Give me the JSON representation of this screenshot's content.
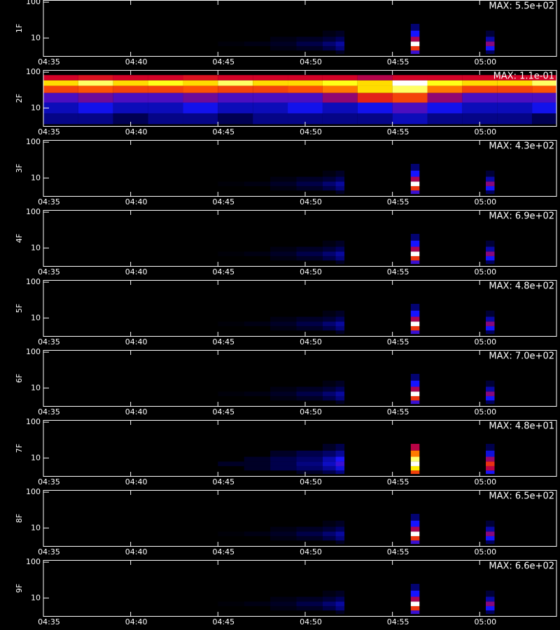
{
  "chart_data": [
    {
      "type": "heatmap",
      "ylabel": "1F",
      "max": {
        "value": 550,
        "label": "MAX: 5.5e+02"
      },
      "log_y": true,
      "xlim": [
        275,
        304.4
      ],
      "ylim": [
        3,
        115
      ],
      "yticks": [
        10,
        100
      ],
      "xticks": [
        {
          "value": 275,
          "label": "04:35"
        },
        {
          "value": 280,
          "label": "04:40"
        },
        {
          "value": 285,
          "label": "04:45"
        },
        {
          "value": 290,
          "label": "04:50"
        },
        {
          "value": 295,
          "label": "04:55"
        },
        {
          "value": 300,
          "label": "05:00"
        }
      ],
      "x": [
        285,
        286.5,
        288,
        289.5,
        291,
        292,
        296.3,
        300.6
      ],
      "rows": [
        {
          "y": 4,
          "values": [
            0,
            0,
            0,
            0,
            0,
            11,
            138,
            28
          ]
        },
        {
          "y": 5,
          "values": [
            0,
            0,
            6,
            11,
            22,
            44,
            330,
            110
          ]
        },
        {
          "y": 7,
          "values": [
            3,
            6,
            11,
            22,
            39,
            61,
            550,
            193
          ]
        },
        {
          "y": 9,
          "values": [
            0,
            0,
            6,
            11,
            17,
            28,
            220,
            66
          ]
        },
        {
          "y": 13,
          "values": [
            0,
            0,
            0,
            0,
            6,
            11,
            110,
            17
          ]
        },
        {
          "y": 20,
          "values": [
            0,
            0,
            0,
            0,
            0,
            0,
            39,
            0
          ]
        }
      ]
    },
    {
      "type": "heatmap",
      "ylabel": "2F",
      "max": {
        "value": 0.11,
        "label": "MAX: 1.1e-01"
      },
      "log_y": true,
      "xlim": [
        275,
        304.4
      ],
      "ylim": [
        3,
        115
      ],
      "yticks": [
        10,
        100
      ],
      "xticks": [
        {
          "value": 275,
          "label": "04:35"
        },
        {
          "value": 280,
          "label": "04:40"
        },
        {
          "value": 285,
          "label": "04:45"
        },
        {
          "value": 290,
          "label": "04:50"
        },
        {
          "value": 295,
          "label": "04:55"
        },
        {
          "value": 300,
          "label": "05:00"
        }
      ],
      "x": [
        275,
        277,
        279,
        281,
        283,
        285,
        287,
        289,
        291,
        293,
        295,
        297,
        299,
        301,
        303
      ],
      "rows": [
        {
          "y": 5,
          "values": [
            0.01,
            0.01,
            0.005,
            0.01,
            0.01,
            0.005,
            0.01,
            0.01,
            0.01,
            0.01,
            0.015,
            0.01,
            0.01,
            0.01,
            0.005
          ]
        },
        {
          "y": 10,
          "values": [
            0.015,
            0.02,
            0.015,
            0.015,
            0.02,
            0.015,
            0.015,
            0.02,
            0.015,
            0.02,
            0.03,
            0.02,
            0.015,
            0.015,
            0.02
          ]
        },
        {
          "y": 20,
          "values": [
            0.03,
            0.035,
            0.03,
            0.03,
            0.035,
            0.03,
            0.03,
            0.03,
            0.04,
            0.06,
            0.07,
            0.04,
            0.03,
            0.03,
            0.03
          ]
        },
        {
          "y": 35,
          "values": [
            0.07,
            0.075,
            0.07,
            0.07,
            0.075,
            0.07,
            0.07,
            0.075,
            0.08,
            0.09,
            0.1,
            0.08,
            0.07,
            0.07,
            0.075
          ]
        },
        {
          "y": 50,
          "values": [
            0.09,
            0.1,
            0.09,
            0.095,
            0.09,
            0.1,
            0.09,
            0.09,
            0.095,
            0.09,
            0.11,
            0.095,
            0.09,
            0.09,
            0.1
          ]
        },
        {
          "y": 70,
          "values": [
            0.05,
            0.055,
            0.05,
            0.05,
            0.055,
            0.05,
            0.05,
            0.05,
            0.05,
            0.045,
            0.05,
            0.05,
            0.05,
            0.05,
            0.05
          ]
        }
      ]
    },
    {
      "type": "heatmap",
      "ylabel": "3F",
      "max": {
        "value": 430,
        "label": "MAX: 4.3e+02"
      },
      "log_y": true,
      "xlim": [
        275,
        304.4
      ],
      "ylim": [
        3,
        115
      ],
      "yticks": [
        10,
        100
      ],
      "xticks": [
        {
          "value": 275,
          "label": "04:35"
        },
        {
          "value": 280,
          "label": "04:40"
        },
        {
          "value": 285,
          "label": "04:45"
        },
        {
          "value": 290,
          "label": "04:50"
        },
        {
          "value": 295,
          "label": "04:55"
        },
        {
          "value": 300,
          "label": "05:00"
        }
      ],
      "x": [
        285,
        286.5,
        288,
        289.5,
        291,
        292,
        296.3,
        300.6
      ],
      "rows": [
        {
          "y": 4,
          "values": [
            0,
            0,
            0,
            0,
            0,
            9,
            108,
            22
          ]
        },
        {
          "y": 5,
          "values": [
            0,
            0,
            4,
            9,
            17,
            34,
            258,
            86
          ]
        },
        {
          "y": 7,
          "values": [
            2,
            4,
            9,
            17,
            30,
            47,
            430,
            151
          ]
        },
        {
          "y": 9,
          "values": [
            0,
            0,
            4,
            9,
            13,
            22,
            172,
            52
          ]
        },
        {
          "y": 13,
          "values": [
            0,
            0,
            0,
            0,
            4,
            9,
            86,
            13
          ]
        },
        {
          "y": 20,
          "values": [
            0,
            0,
            0,
            0,
            0,
            0,
            30,
            0
          ]
        }
      ]
    },
    {
      "type": "heatmap",
      "ylabel": "4F",
      "max": {
        "value": 690,
        "label": "MAX: 6.9e+02"
      },
      "log_y": true,
      "xlim": [
        275,
        304.4
      ],
      "ylim": [
        3,
        115
      ],
      "yticks": [
        10,
        100
      ],
      "xticks": [
        {
          "value": 275,
          "label": "04:35"
        },
        {
          "value": 280,
          "label": "04:40"
        },
        {
          "value": 285,
          "label": "04:45"
        },
        {
          "value": 290,
          "label": "04:50"
        },
        {
          "value": 295,
          "label": "04:55"
        },
        {
          "value": 300,
          "label": "05:00"
        }
      ],
      "x": [
        285,
        286.5,
        288,
        289.5,
        291,
        292,
        296.3,
        300.6
      ],
      "rows": [
        {
          "y": 4,
          "values": [
            0,
            0,
            0,
            0,
            0,
            14,
            173,
            35
          ]
        },
        {
          "y": 5,
          "values": [
            0,
            0,
            7,
            14,
            28,
            55,
            414,
            138
          ]
        },
        {
          "y": 7,
          "values": [
            3,
            7,
            14,
            28,
            48,
            76,
            690,
            242
          ]
        },
        {
          "y": 9,
          "values": [
            0,
            0,
            7,
            14,
            21,
            35,
            276,
            83
          ]
        },
        {
          "y": 13,
          "values": [
            0,
            0,
            0,
            0,
            7,
            14,
            138,
            21
          ]
        },
        {
          "y": 20,
          "values": [
            0,
            0,
            0,
            0,
            0,
            0,
            48,
            0
          ]
        }
      ]
    },
    {
      "type": "heatmap",
      "ylabel": "5F",
      "max": {
        "value": 480,
        "label": "MAX: 4.8e+02"
      },
      "log_y": true,
      "xlim": [
        275,
        304.4
      ],
      "ylim": [
        3,
        115
      ],
      "yticks": [
        10,
        100
      ],
      "xticks": [
        {
          "value": 275,
          "label": "04:35"
        },
        {
          "value": 280,
          "label": "04:40"
        },
        {
          "value": 285,
          "label": "04:45"
        },
        {
          "value": 290,
          "label": "04:50"
        },
        {
          "value": 295,
          "label": "04:55"
        },
        {
          "value": 300,
          "label": "05:00"
        }
      ],
      "x": [
        285,
        286.5,
        288,
        289.5,
        291,
        292,
        296.3,
        300.6
      ],
      "rows": [
        {
          "y": 4,
          "values": [
            0,
            0,
            0,
            0,
            0,
            10,
            120,
            24
          ]
        },
        {
          "y": 5,
          "values": [
            0,
            0,
            5,
            10,
            19,
            38,
            288,
            96
          ]
        },
        {
          "y": 7,
          "values": [
            2,
            5,
            10,
            19,
            34,
            53,
            480,
            168
          ]
        },
        {
          "y": 9,
          "values": [
            0,
            0,
            5,
            10,
            14,
            24,
            192,
            58
          ]
        },
        {
          "y": 13,
          "values": [
            0,
            0,
            0,
            0,
            5,
            10,
            96,
            14
          ]
        },
        {
          "y": 20,
          "values": [
            0,
            0,
            0,
            0,
            0,
            0,
            34,
            0
          ]
        }
      ]
    },
    {
      "type": "heatmap",
      "ylabel": "6F",
      "max": {
        "value": 700,
        "label": "MAX: 7.0e+02"
      },
      "log_y": true,
      "xlim": [
        275,
        304.4
      ],
      "ylim": [
        3,
        115
      ],
      "yticks": [
        10,
        100
      ],
      "xticks": [
        {
          "value": 275,
          "label": "04:35"
        },
        {
          "value": 280,
          "label": "04:40"
        },
        {
          "value": 285,
          "label": "04:45"
        },
        {
          "value": 290,
          "label": "04:50"
        },
        {
          "value": 295,
          "label": "04:55"
        },
        {
          "value": 300,
          "label": "05:00"
        }
      ],
      "x": [
        285,
        286.5,
        288,
        289.5,
        291,
        292,
        296.3,
        300.6
      ],
      "rows": [
        {
          "y": 4,
          "values": [
            0,
            0,
            0,
            0,
            0,
            14,
            175,
            35
          ]
        },
        {
          "y": 5,
          "values": [
            0,
            0,
            7,
            14,
            28,
            56,
            420,
            140
          ]
        },
        {
          "y": 7,
          "values": [
            4,
            7,
            14,
            28,
            49,
            77,
            700,
            245
          ]
        },
        {
          "y": 9,
          "values": [
            0,
            0,
            7,
            14,
            21,
            35,
            280,
            84
          ]
        },
        {
          "y": 13,
          "values": [
            0,
            0,
            0,
            0,
            7,
            14,
            140,
            21
          ]
        },
        {
          "y": 20,
          "values": [
            0,
            0,
            0,
            0,
            0,
            0,
            49,
            0
          ]
        }
      ]
    },
    {
      "type": "heatmap",
      "ylabel": "7F",
      "max": {
        "value": 48,
        "label": "MAX: 4.8e+01"
      },
      "log_y": true,
      "xlim": [
        275,
        304.4
      ],
      "ylim": [
        3,
        115
      ],
      "yticks": [
        10,
        100
      ],
      "xticks": [
        {
          "value": 275,
          "label": "04:35"
        },
        {
          "value": 280,
          "label": "04:40"
        },
        {
          "value": 285,
          "label": "04:45"
        },
        {
          "value": 290,
          "label": "04:50"
        },
        {
          "value": 295,
          "label": "04:55"
        },
        {
          "value": 300,
          "label": "05:00"
        }
      ],
      "x": [
        285,
        286.5,
        288,
        289.5,
        291,
        292,
        296.3,
        300.6
      ],
      "rows": [
        {
          "y": 4,
          "values": [
            0,
            0,
            0,
            1,
            2,
            4,
            30,
            10
          ]
        },
        {
          "y": 5,
          "values": [
            0,
            1,
            2,
            3,
            5,
            8,
            40,
            20
          ]
        },
        {
          "y": 7,
          "values": [
            1,
            1,
            2,
            4,
            7,
            12,
            48,
            28
          ]
        },
        {
          "y": 9,
          "values": [
            0,
            1,
            2,
            3,
            6,
            10,
            44,
            18
          ]
        },
        {
          "y": 13,
          "values": [
            0,
            0,
            1,
            2,
            3,
            5,
            35,
            8
          ]
        },
        {
          "y": 20,
          "values": [
            0,
            0,
            0,
            0,
            1,
            2,
            20,
            2
          ]
        }
      ]
    },
    {
      "type": "heatmap",
      "ylabel": "8F",
      "max": {
        "value": 650,
        "label": "MAX: 6.5e+02"
      },
      "log_y": true,
      "xlim": [
        275,
        304.4
      ],
      "ylim": [
        3,
        115
      ],
      "yticks": [
        10,
        100
      ],
      "xticks": [
        {
          "value": 275,
          "label": "04:35"
        },
        {
          "value": 280,
          "label": "04:40"
        },
        {
          "value": 285,
          "label": "04:45"
        },
        {
          "value": 290,
          "label": "04:50"
        },
        {
          "value": 295,
          "label": "04:55"
        },
        {
          "value": 300,
          "label": "05:00"
        }
      ],
      "x": [
        285,
        286.5,
        288,
        289.5,
        291,
        292,
        296.3,
        300.6
      ],
      "rows": [
        {
          "y": 4,
          "values": [
            0,
            0,
            0,
            0,
            0,
            13,
            163,
            33
          ]
        },
        {
          "y": 5,
          "values": [
            0,
            0,
            7,
            13,
            26,
            52,
            390,
            130
          ]
        },
        {
          "y": 7,
          "values": [
            3,
            7,
            13,
            26,
            46,
            72,
            650,
            228
          ]
        },
        {
          "y": 9,
          "values": [
            0,
            0,
            7,
            13,
            20,
            33,
            260,
            78
          ]
        },
        {
          "y": 13,
          "values": [
            0,
            0,
            0,
            0,
            7,
            13,
            130,
            20
          ]
        },
        {
          "y": 20,
          "values": [
            0,
            0,
            0,
            0,
            0,
            0,
            46,
            0
          ]
        }
      ]
    },
    {
      "type": "heatmap",
      "ylabel": "9F",
      "max": {
        "value": 660,
        "label": "MAX: 6.6e+02"
      },
      "log_y": true,
      "xlim": [
        275,
        304.4
      ],
      "ylim": [
        3,
        115
      ],
      "yticks": [
        10,
        100
      ],
      "xticks": [
        {
          "value": 275,
          "label": "04:35"
        },
        {
          "value": 280,
          "label": "04:40"
        },
        {
          "value": 285,
          "label": "04:45"
        },
        {
          "value": 290,
          "label": "04:50"
        },
        {
          "value": 295,
          "label": "04:55"
        },
        {
          "value": 300,
          "label": "05:00"
        }
      ],
      "x": [
        285,
        286.5,
        288,
        289.5,
        291,
        292,
        296.3,
        300.6
      ],
      "rows": [
        {
          "y": 4,
          "values": [
            0,
            0,
            0,
            0,
            0,
            13,
            165,
            33
          ]
        },
        {
          "y": 5,
          "values": [
            0,
            0,
            7,
            13,
            26,
            53,
            396,
            132
          ]
        },
        {
          "y": 7,
          "values": [
            3,
            7,
            13,
            26,
            46,
            73,
            660,
            231
          ]
        },
        {
          "y": 9,
          "values": [
            0,
            0,
            7,
            13,
            20,
            33,
            264,
            79
          ]
        },
        {
          "y": 13,
          "values": [
            0,
            0,
            0,
            0,
            7,
            13,
            132,
            20
          ]
        },
        {
          "y": 20,
          "values": [
            0,
            0,
            0,
            0,
            0,
            0,
            46,
            0
          ]
        }
      ]
    }
  ]
}
